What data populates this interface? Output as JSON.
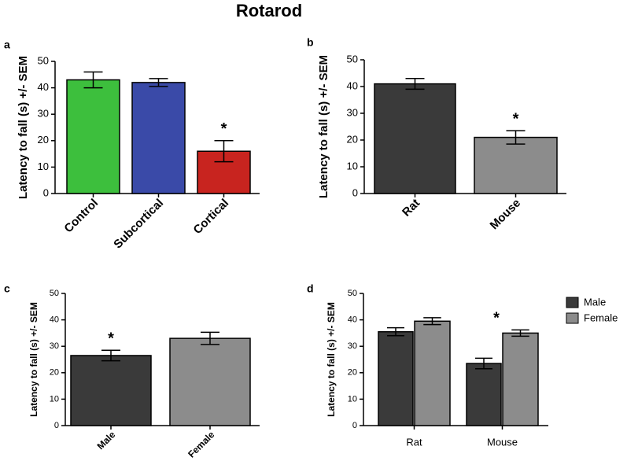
{
  "title": "Rotarod",
  "chart_data": [
    {
      "type": "bar",
      "panel": "a",
      "ylabel": "Latency to fall (s) +/- SEM",
      "categories": [
        "Control",
        "Subcortical",
        "Cortical"
      ],
      "values": [
        43,
        42,
        16
      ],
      "errors": [
        3,
        1.5,
        4
      ],
      "colors": [
        "#3dbf3d",
        "#3a4aa8",
        "#c8241f"
      ],
      "annotations": [
        null,
        null,
        "*"
      ],
      "ylim": [
        0,
        50
      ],
      "yticks": [
        0,
        10,
        20,
        30,
        40,
        50
      ]
    },
    {
      "type": "bar",
      "panel": "b",
      "ylabel": "Latency to fall (s) +/- SEM",
      "categories": [
        "Rat",
        "Mouse"
      ],
      "values": [
        41,
        21
      ],
      "errors": [
        2,
        2.5
      ],
      "colors": [
        "#3a3a3a",
        "#8c8c8c"
      ],
      "annotations": [
        null,
        "*"
      ],
      "ylim": [
        0,
        50
      ],
      "yticks": [
        0,
        10,
        20,
        30,
        40,
        50
      ]
    },
    {
      "type": "bar",
      "panel": "c",
      "ylabel": "Latency to fall (s) +/- SEM",
      "categories": [
        "Male",
        "Female"
      ],
      "values": [
        26.5,
        33
      ],
      "errors": [
        2,
        2.3
      ],
      "colors": [
        "#3a3a3a",
        "#8c8c8c"
      ],
      "annotations": [
        "*",
        null
      ],
      "ylim": [
        0,
        50
      ],
      "yticks": [
        0,
        10,
        20,
        30,
        40,
        50
      ]
    },
    {
      "type": "grouped_bar",
      "panel": "d",
      "ylabel": "Latency to fall (s) +/- SEM",
      "categories": [
        "Rat",
        "Mouse"
      ],
      "series": [
        {
          "name": "Male",
          "color": "#3a3a3a",
          "values": [
            35.5,
            23.5
          ],
          "errors": [
            1.5,
            2
          ],
          "annotations": [
            null,
            null
          ]
        },
        {
          "name": "Female",
          "color": "#8c8c8c",
          "values": [
            39.5,
            35
          ],
          "errors": [
            1.3,
            1.2
          ],
          "annotations": [
            null,
            "*"
          ]
        }
      ],
      "legend": "upper right",
      "ylim": [
        0,
        50
      ],
      "yticks": [
        0,
        10,
        20,
        30,
        40,
        50
      ]
    }
  ]
}
